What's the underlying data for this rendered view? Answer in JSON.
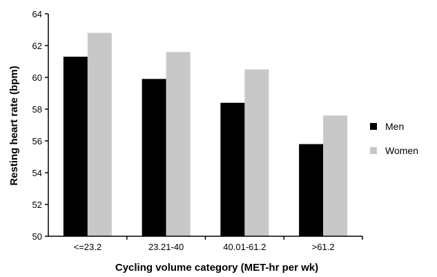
{
  "chart_data": {
    "type": "bar",
    "categories": [
      "<=23.2",
      "23.21-40",
      "40.01-61.2",
      ">61.2"
    ],
    "series": [
      {
        "name": "Men",
        "values": [
          61.3,
          59.9,
          58.4,
          55.8
        ],
        "color": "#000000"
      },
      {
        "name": "Women",
        "values": [
          62.8,
          61.6,
          60.5,
          57.6
        ],
        "color": "#c8c8c8"
      }
    ],
    "xlabel": "Cycling volume category (MET-hr per wk)",
    "ylabel": "Resting heart rate (bpm)",
    "ylim": [
      50,
      64
    ],
    "yticks": [
      "50",
      "52",
      "54",
      "56",
      "58",
      "60",
      "62",
      "64"
    ],
    "grid": false,
    "legend": "right"
  }
}
